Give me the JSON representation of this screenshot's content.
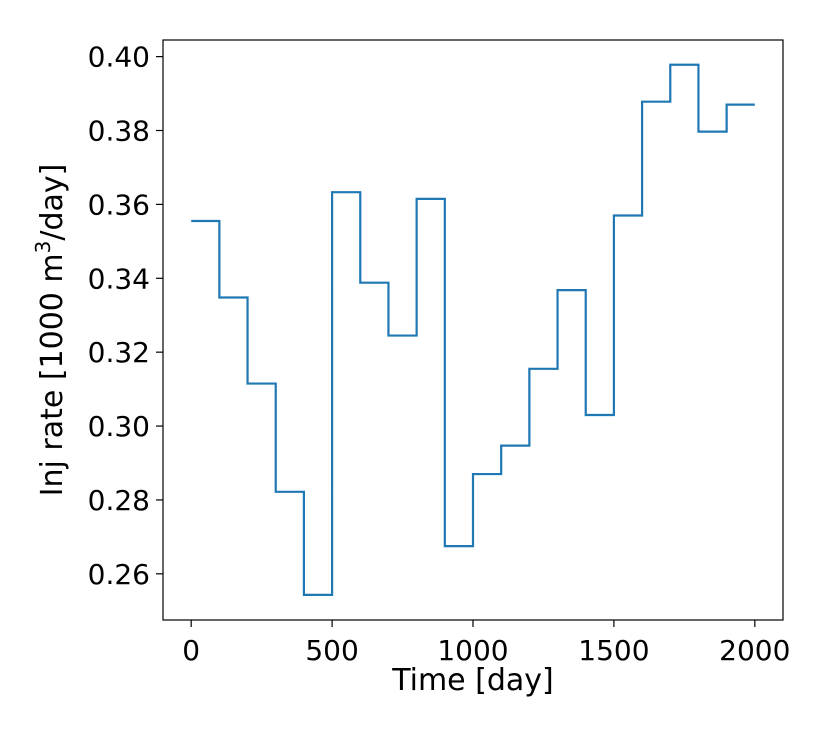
{
  "chart_data": {
    "type": "line",
    "step": "post",
    "xlabel": "Time [day]",
    "ylabel_prefix": "Inj rate [1000 m",
    "ylabel_superscript": "3",
    "ylabel_suffix": "/day]",
    "xlim": [
      -100,
      2100
    ],
    "ylim": [
      0.2475,
      0.4045
    ],
    "xticks": [
      0,
      500,
      1000,
      1500,
      2000
    ],
    "xtick_labels": [
      "0",
      "500",
      "1000",
      "1500",
      "2000"
    ],
    "yticks": [
      0.26,
      0.28,
      0.3,
      0.32,
      0.34,
      0.36,
      0.38,
      0.4
    ],
    "ytick_labels": [
      "0.26",
      "0.28",
      "0.30",
      "0.32",
      "0.34",
      "0.36",
      "0.38",
      "0.40"
    ],
    "grid": false,
    "series": [
      {
        "color": "#1f77b4",
        "x": [
          0,
          100,
          200,
          300,
          400,
          500,
          600,
          700,
          800,
          900,
          1000,
          1100,
          1200,
          1300,
          1400,
          1500,
          1600,
          1700,
          1800,
          1900,
          2000
        ],
        "y": [
          0.3555,
          0.3348,
          0.3115,
          0.2822,
          0.2543,
          0.3633,
          0.3388,
          0.3245,
          0.3615,
          0.2675,
          0.287,
          0.2947,
          0.3155,
          0.3368,
          0.303,
          0.357,
          0.3878,
          0.3978,
          0.3797,
          0.387,
          0.387
        ]
      }
    ]
  }
}
